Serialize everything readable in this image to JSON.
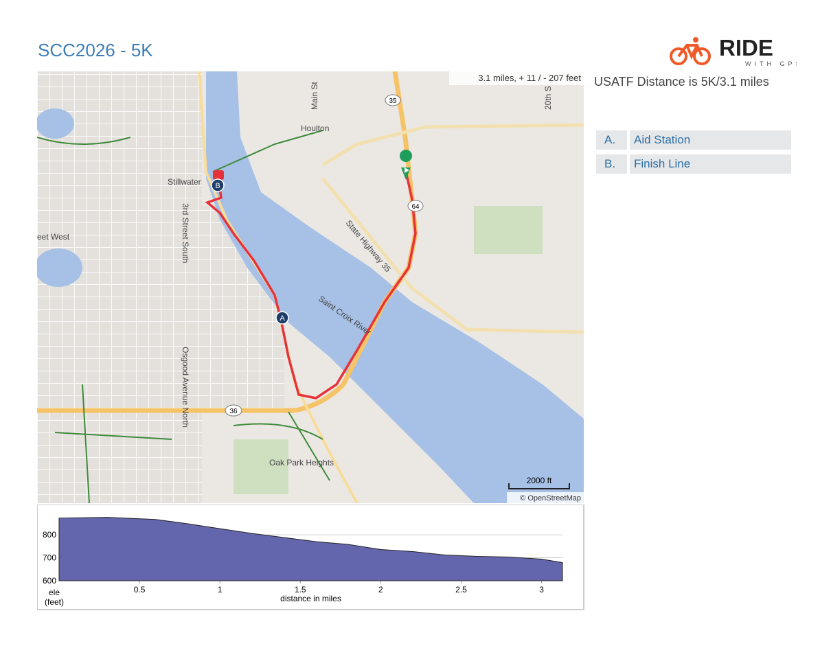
{
  "header": {
    "title": "SCC2026 - 5K",
    "logo": {
      "word": "RIDE",
      "tagline": "WITH GPS"
    }
  },
  "map": {
    "stats": "3.1 miles, + 11 / - 207 feet",
    "scale": "2000 ft",
    "attribution": "© OpenStreetMap",
    "labels": [
      "Main St",
      "Houlton",
      "Stillwater",
      "3rd Street South",
      "eet West",
      "State Highway 35",
      "Saint Croix River",
      "Osgood Avenue North",
      "Oak Park Heights",
      "20th S"
    ],
    "shields": [
      "35",
      "64",
      "36"
    ],
    "markers": [
      "A",
      "B"
    ]
  },
  "description": "USATF Distance is 5K/3.1 miles",
  "cues": [
    {
      "letter": "A.",
      "label": "Aid Station"
    },
    {
      "letter": "B.",
      "label": "Finish Line"
    }
  ],
  "chart_data": {
    "type": "area",
    "x_label": "distance in miles",
    "y_label": "ele\n(feet)",
    "x": [
      0,
      0.3,
      0.6,
      0.8,
      1.0,
      1.2,
      1.4,
      1.6,
      1.8,
      2.0,
      2.2,
      2.4,
      2.6,
      2.8,
      3.0,
      3.13
    ],
    "values": [
      873,
      876,
      867,
      848,
      827,
      806,
      788,
      770,
      758,
      736,
      727,
      712,
      706,
      703,
      694,
      679
    ],
    "color": "#6466ad",
    "xlim": [
      0,
      3.13
    ],
    "ylim": [
      600,
      890
    ],
    "xticks": [
      0.5,
      1.0,
      1.5,
      2.0,
      2.5,
      3.0
    ],
    "yticks": [
      600,
      700,
      800
    ],
    "grid": true
  }
}
